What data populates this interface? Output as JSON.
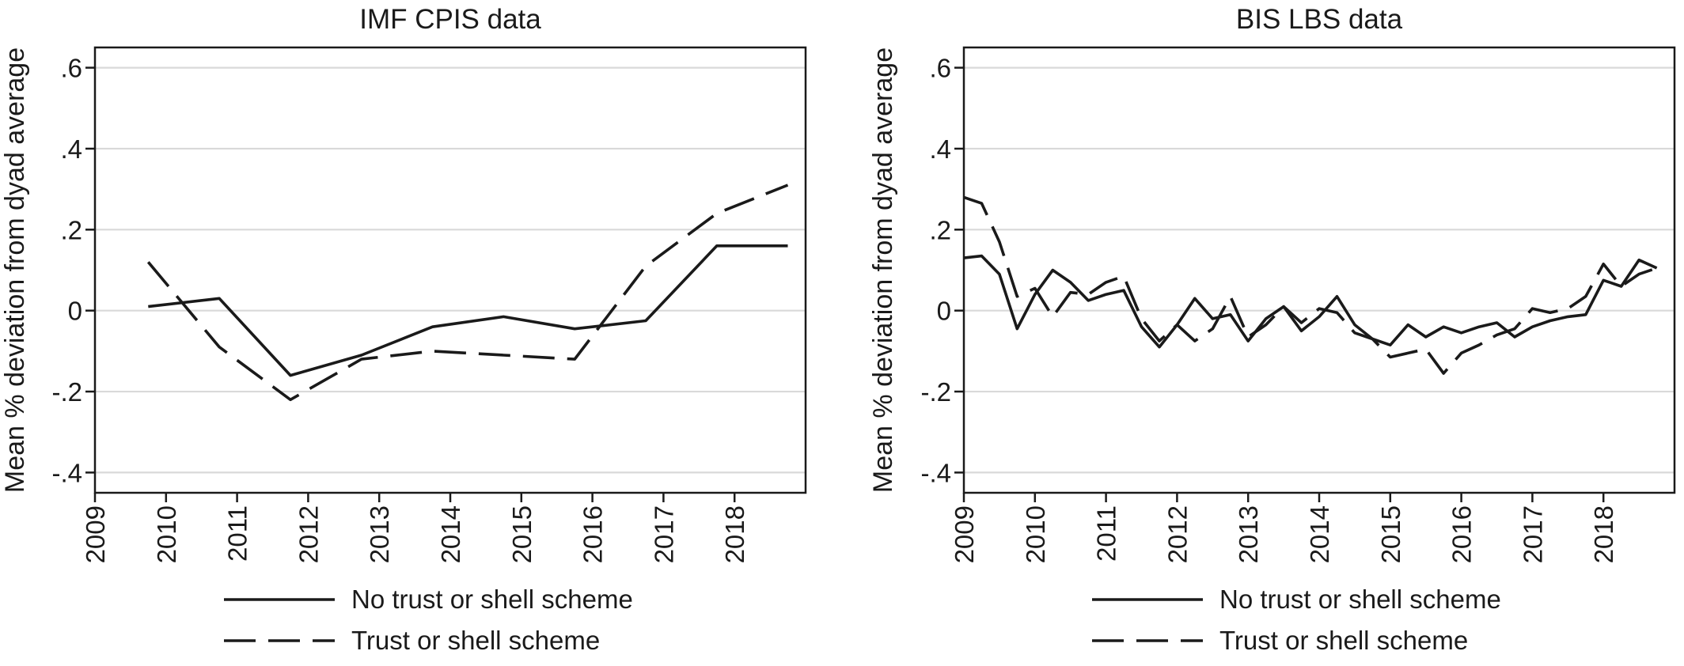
{
  "chart_data": [
    {
      "type": "line",
      "title": "IMF CPIS data",
      "ylabel": "Mean % deviation from dyad average",
      "xlabel": "",
      "xlim": [
        2009,
        2019
      ],
      "ylim": [
        -0.45,
        0.65
      ],
      "x_ticks": [
        2009,
        2010,
        2011,
        2012,
        2013,
        2014,
        2015,
        2016,
        2017,
        2018
      ],
      "x_tick_labels": [
        "2009",
        "2010",
        "2011",
        "2012",
        "2013",
        "2014",
        "2015",
        "2016",
        "2017",
        "2018"
      ],
      "y_ticks": [
        -0.4,
        -0.2,
        0,
        0.2,
        0.4,
        0.6
      ],
      "y_tick_labels": [
        "-.4",
        "-.2",
        "0",
        ".2",
        ".4",
        ".6"
      ],
      "grid": true,
      "legend_position": "bottom",
      "series": [
        {
          "name": "No trust or shell scheme",
          "style": "solid",
          "x": [
            2009.75,
            2010.75,
            2011.75,
            2012.75,
            2013.75,
            2014.75,
            2015.75,
            2016.75,
            2017.75,
            2018.75
          ],
          "values": [
            0.01,
            0.03,
            -0.16,
            -0.11,
            -0.04,
            -0.015,
            -0.045,
            -0.025,
            0.16,
            0.16
          ]
        },
        {
          "name": "Trust or shell scheme",
          "style": "dashed",
          "x": [
            2009.75,
            2010.75,
            2011.75,
            2012.75,
            2013.75,
            2014.75,
            2015.75,
            2016.75,
            2017.75,
            2018.75
          ],
          "values": [
            0.12,
            -0.09,
            -0.22,
            -0.12,
            -0.1,
            -0.11,
            -0.12,
            0.11,
            0.24,
            0.31
          ]
        }
      ]
    },
    {
      "type": "line",
      "title": "BIS LBS data",
      "ylabel": "Mean % deviation from dyad average",
      "xlabel": "",
      "xlim": [
        2009,
        2019
      ],
      "ylim": [
        -0.45,
        0.65
      ],
      "x_ticks": [
        2009,
        2010,
        2011,
        2012,
        2013,
        2014,
        2015,
        2016,
        2017,
        2018
      ],
      "x_tick_labels": [
        "2009",
        "2010",
        "2011",
        "2012",
        "2013",
        "2014",
        "2015",
        "2016",
        "2017",
        "2018"
      ],
      "y_ticks": [
        -0.4,
        -0.2,
        0,
        0.2,
        0.4,
        0.6
      ],
      "y_tick_labels": [
        "-.4",
        "-.2",
        "0",
        ".2",
        ".4",
        ".6"
      ],
      "grid": true,
      "legend_position": "bottom",
      "series": [
        {
          "name": "No trust or shell scheme",
          "style": "solid",
          "x": [
            2009,
            2009.25,
            2009.5,
            2009.75,
            2010,
            2010.25,
            2010.5,
            2010.75,
            2011,
            2011.25,
            2011.5,
            2011.75,
            2012,
            2012.25,
            2012.5,
            2012.75,
            2013,
            2013.25,
            2013.5,
            2013.75,
            2014,
            2014.25,
            2014.5,
            2014.75,
            2015,
            2015.25,
            2015.5,
            2015.75,
            2016,
            2016.25,
            2016.5,
            2016.75,
            2017,
            2017.25,
            2017.5,
            2017.75,
            2018,
            2018.25,
            2018.5,
            2018.75
          ],
          "values": [
            0.13,
            0.135,
            0.09,
            -0.045,
            0.04,
            0.1,
            0.07,
            0.025,
            0.04,
            0.05,
            -0.04,
            -0.09,
            -0.035,
            0.03,
            -0.02,
            -0.01,
            -0.075,
            -0.02,
            0.01,
            -0.05,
            -0.015,
            0.035,
            -0.035,
            -0.07,
            -0.085,
            -0.035,
            -0.065,
            -0.04,
            -0.055,
            -0.04,
            -0.03,
            -0.065,
            -0.04,
            -0.025,
            -0.015,
            -0.01,
            0.075,
            0.06,
            0.125,
            0.105
          ]
        },
        {
          "name": "Trust or shell scheme",
          "style": "dashed",
          "x": [
            2009,
            2009.25,
            2009.5,
            2009.75,
            2010,
            2010.25,
            2010.5,
            2010.75,
            2011,
            2011.25,
            2011.5,
            2011.75,
            2012,
            2012.25,
            2012.5,
            2012.75,
            2013,
            2013.25,
            2013.5,
            2013.75,
            2014,
            2014.25,
            2014.5,
            2014.75,
            2015,
            2015.25,
            2015.5,
            2015.75,
            2016,
            2016.25,
            2016.5,
            2016.75,
            2017,
            2017.25,
            2017.5,
            2017.75,
            2018,
            2018.25,
            2018.5,
            2018.75
          ],
          "values": [
            0.28,
            0.265,
            0.17,
            0.035,
            0.055,
            -0.015,
            0.045,
            0.04,
            0.07,
            0.085,
            -0.02,
            -0.075,
            -0.035,
            -0.075,
            -0.045,
            0.035,
            -0.065,
            -0.035,
            0.01,
            -0.03,
            0.005,
            -0.005,
            -0.055,
            -0.07,
            -0.115,
            -0.105,
            -0.095,
            -0.155,
            -0.105,
            -0.085,
            -0.06,
            -0.045,
            0.005,
            -0.005,
            0.005,
            0.035,
            0.115,
            0.06,
            0.09,
            0.105
          ]
        }
      ]
    }
  ]
}
